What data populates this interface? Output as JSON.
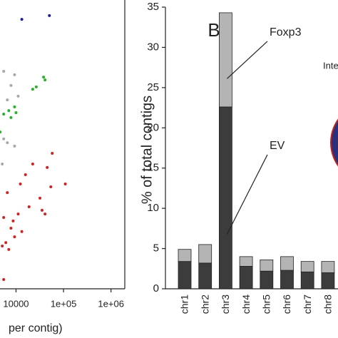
{
  "chart_data": [
    {
      "type": "scatter",
      "xlabel": "per contig)",
      "xlog": true,
      "xlim": [
        4600,
        1950000
      ],
      "ylim": [
        0,
        100
      ],
      "xticks": [
        10000,
        {
          "value": 100000,
          "label": "1e+05"
        },
        {
          "value": 1000000,
          "label": "1e+06"
        }
      ],
      "series": [
        {
          "color": "#1a1aa8",
          "x": [
            13240,
            50400
          ],
          "values": [
            93.3,
            94.6
          ]
        },
        {
          "color": "#22b522",
          "x": [
            38000,
            40800,
            26700,
            22500,
            9320,
            7040,
            5500,
            10000,
            7830,
            4620
          ],
          "values": [
            73.3,
            72.3,
            69.9,
            69.1,
            63.0,
            61.7,
            60.5,
            61.0,
            59.3,
            54.3
          ]
        },
        {
          "color": "#a8a8a8",
          "x": [
            5500,
            9320,
            7830,
            11100,
            6560,
            5500,
            6560,
            9320,
            5130
          ],
          "values": [
            75.3,
            74.1,
            70.4,
            66.7,
            65.4,
            51.9,
            50.6,
            49.4,
            43.2
          ]
        },
        {
          "color": "#dd1c1c",
          "x": [
            57800,
            22500,
            45300,
            15800,
            12350,
            109000,
            54000,
            6560,
            31900,
            35300,
            40800,
            18800,
            11100,
            5500,
            7830,
            13240,
            9320,
            6100,
            7040,
            5130,
            5500,
            8700
          ],
          "values": [
            46.9,
            43.2,
            42.0,
            39.5,
            36.3,
            36.3,
            35.3,
            33.3,
            31.4,
            27.2,
            25.9,
            28.4,
            25.9,
            24.7,
            21.0,
            19.8,
            18.0,
            16.0,
            13.6,
            14.8,
            3.2,
            23.5
          ]
        }
      ]
    },
    {
      "type": "bar",
      "stacked": true,
      "ylabel": "% of total contigs",
      "categories": [
        "chr1",
        "chr2",
        "chr3",
        "chr4",
        "chr5",
        "chr6",
        "chr7",
        "chr8"
      ],
      "series": [
        {
          "name": "EV",
          "color": "#3c3c3c",
          "values": [
            3.4,
            3.2,
            22.6,
            2.8,
            2.2,
            2.3,
            2.1,
            2.0
          ]
        },
        {
          "name": "Foxp3",
          "color": "#b4b4b4",
          "values": [
            1.5,
            2.3,
            11.7,
            1.2,
            1.4,
            1.7,
            1.3,
            1.4
          ]
        }
      ],
      "ylim": [
        0,
        35
      ],
      "yticks": [
        0,
        5,
        10,
        15,
        20,
        25,
        30,
        35
      ],
      "panel_label": "B",
      "annotations": [
        "Inte"
      ]
    }
  ]
}
